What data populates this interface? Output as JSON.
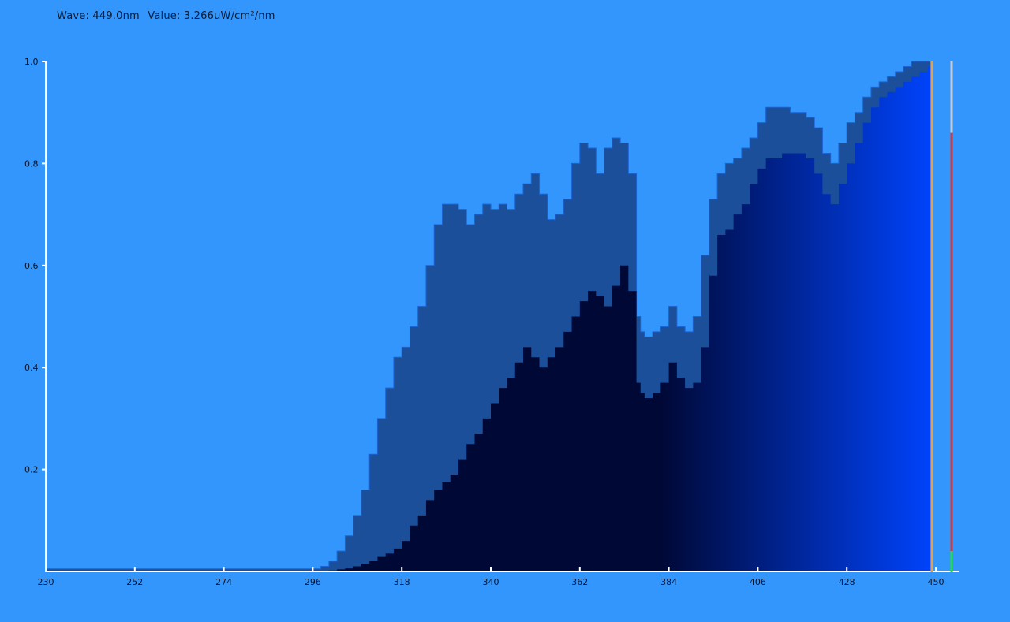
{
  "readout": {
    "wave": "Wave: 449.0nm",
    "value": "Value: 3.266uW/cm²/nm"
  },
  "colors": {
    "background": "#3296fd",
    "axis": "#ffffff",
    "series_upper": "#1b4f9a",
    "series_upper_edge": "#1d62d1",
    "series_lower_start": "#000835",
    "series_lower_end": "#0044ff",
    "cursor": "#d8a45c",
    "meter_top": "#c9c9d2",
    "meter_mid": "#d23b3b",
    "meter_bottom": "#22dd44"
  },
  "chart_data": {
    "type": "area",
    "xlim": [
      230,
      450
    ],
    "ylim": [
      0,
      1.0
    ],
    "x_ticks": [
      230,
      252,
      274,
      296,
      318,
      340,
      362,
      384,
      406,
      428,
      450
    ],
    "y_ticks": [
      0.2,
      0.4,
      0.6,
      0.8,
      1.0
    ],
    "cursor_x": 449.0,
    "meter_levels": {
      "white_to": 0.86,
      "red_to": 0.04
    },
    "series": [
      {
        "x": [
          230,
          296,
          298,
          300,
          302,
          304,
          306,
          308,
          310,
          312,
          314,
          316,
          318,
          320,
          322,
          324,
          326,
          328,
          330,
          332,
          334,
          336,
          338,
          340,
          342,
          344,
          346,
          348,
          350,
          352,
          354,
          356,
          358,
          360,
          362,
          364,
          366,
          368,
          370,
          372,
          374,
          376,
          377,
          378,
          380,
          382,
          384,
          386,
          388,
          390,
          392,
          394,
          396,
          398,
          400,
          402,
          404,
          406,
          408,
          410,
          412,
          414,
          416,
          418,
          420,
          422,
          424,
          426,
          428,
          430,
          432,
          434,
          436,
          438,
          440,
          442,
          444,
          446,
          448,
          449
        ],
        "y": [
          0.005,
          0.005,
          0.01,
          0.02,
          0.04,
          0.07,
          0.11,
          0.16,
          0.23,
          0.3,
          0.36,
          0.42,
          0.44,
          0.48,
          0.52,
          0.6,
          0.68,
          0.72,
          0.72,
          0.71,
          0.68,
          0.7,
          0.72,
          0.71,
          0.72,
          0.71,
          0.74,
          0.76,
          0.78,
          0.74,
          0.69,
          0.7,
          0.73,
          0.8,
          0.84,
          0.83,
          0.78,
          0.83,
          0.85,
          0.84,
          0.78,
          0.5,
          0.47,
          0.46,
          0.47,
          0.48,
          0.52,
          0.48,
          0.47,
          0.5,
          0.62,
          0.73,
          0.78,
          0.8,
          0.81,
          0.83,
          0.85,
          0.88,
          0.91,
          0.91,
          0.91,
          0.9,
          0.9,
          0.89,
          0.87,
          0.82,
          0.8,
          0.84,
          0.88,
          0.9,
          0.93,
          0.95,
          0.96,
          0.97,
          0.98,
          0.99,
          1.0,
          1.0,
          1.0,
          1.0
        ]
      },
      {
        "x": [
          230,
          298,
          300,
          302,
          304,
          306,
          308,
          310,
          312,
          314,
          316,
          318,
          320,
          322,
          324,
          326,
          328,
          330,
          332,
          334,
          336,
          338,
          340,
          342,
          344,
          346,
          348,
          350,
          352,
          354,
          356,
          358,
          360,
          362,
          364,
          366,
          368,
          370,
          372,
          374,
          376,
          377,
          378,
          380,
          382,
          384,
          386,
          388,
          390,
          392,
          394,
          396,
          398,
          400,
          402,
          404,
          406,
          408,
          410,
          412,
          414,
          416,
          418,
          420,
          422,
          424,
          426,
          428,
          430,
          432,
          434,
          436,
          438,
          440,
          442,
          444,
          446,
          448,
          449
        ],
        "y": [
          0.0,
          0.0,
          0.002,
          0.004,
          0.006,
          0.01,
          0.015,
          0.02,
          0.03,
          0.035,
          0.045,
          0.06,
          0.09,
          0.11,
          0.14,
          0.16,
          0.175,
          0.19,
          0.22,
          0.25,
          0.27,
          0.3,
          0.33,
          0.36,
          0.38,
          0.41,
          0.44,
          0.42,
          0.4,
          0.42,
          0.44,
          0.47,
          0.5,
          0.53,
          0.55,
          0.54,
          0.52,
          0.56,
          0.6,
          0.55,
          0.37,
          0.35,
          0.34,
          0.35,
          0.37,
          0.41,
          0.38,
          0.36,
          0.37,
          0.44,
          0.58,
          0.66,
          0.67,
          0.7,
          0.72,
          0.76,
          0.79,
          0.81,
          0.81,
          0.82,
          0.82,
          0.82,
          0.81,
          0.78,
          0.74,
          0.72,
          0.76,
          0.8,
          0.84,
          0.88,
          0.91,
          0.93,
          0.94,
          0.95,
          0.96,
          0.97,
          0.98,
          0.99,
          0.99
        ]
      }
    ]
  }
}
